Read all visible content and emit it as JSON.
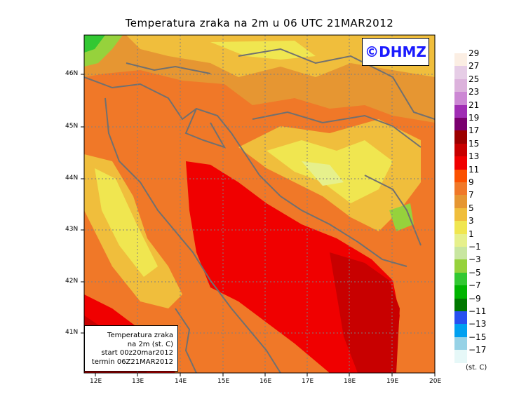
{
  "title": "Temperatura zraka na 2m u 06 UTC 21MAR2012",
  "copyright": "©DHMZ",
  "info_box": {
    "line1": "Temperatura zraka",
    "line2": "na 2m (st. C)",
    "line3": "start 00z20mar2012",
    "line4": "termin 06Z21MAR2012"
  },
  "legend": {
    "units": "(st. C)",
    "labels": [
      "29",
      "27",
      "25",
      "23",
      "21",
      "19",
      "17",
      "15",
      "13",
      "11",
      "9",
      "7",
      "5",
      "3",
      "1",
      "−1",
      "−3",
      "−5",
      "−7",
      "−9",
      "−11",
      "−13",
      "−15",
      "−17"
    ],
    "colors": [
      "#fbeee3",
      "#e6cde6",
      "#dcb2dc",
      "#cc88d4",
      "#a02db4",
      "#7a006e",
      "#9c0000",
      "#c80000",
      "#f00000",
      "#fb5000",
      "#f07828",
      "#e69632",
      "#f0be3c",
      "#f0e650",
      "#e6f08c",
      "#c8e6a0",
      "#96d23c",
      "#32c832",
      "#00b400",
      "#007800",
      "#2850f0",
      "#00a0f0",
      "#96d2e6",
      "#e6f8f8"
    ]
  },
  "lat_labels": [
    "46N",
    "45N",
    "44N",
    "43N",
    "42N",
    "41N"
  ],
  "lon_labels": [
    "12E",
    "13E",
    "14E",
    "15E",
    "16E",
    "17E",
    "18E",
    "19E",
    "20E"
  ]
}
